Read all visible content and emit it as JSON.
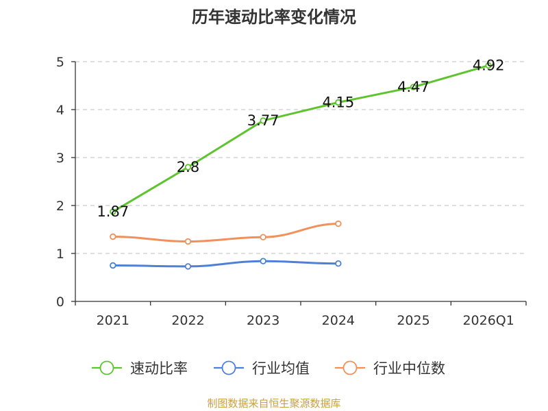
{
  "chart_data": {
    "type": "line",
    "title": "历年速动比率变化情况",
    "categories": [
      "2021",
      "2022",
      "2023",
      "2024",
      "2025",
      "2026Q1"
    ],
    "ylim": [
      0,
      5
    ],
    "yticks": [
      0,
      1,
      2,
      3,
      4,
      5
    ],
    "grid": true,
    "legend_position": "bottom",
    "series": [
      {
        "name": "速动比率",
        "color": "#5ec42e",
        "values": [
          1.87,
          2.8,
          3.77,
          4.15,
          4.47,
          4.92
        ],
        "labels": [
          "1.87",
          "2.8",
          "3.77",
          "4.15",
          "4.47",
          "4.92"
        ]
      },
      {
        "name": "行业均值",
        "color": "#4f7fd6",
        "values": [
          0.75,
          0.73,
          0.84,
          0.79,
          null,
          null
        ]
      },
      {
        "name": "行业中位数",
        "color": "#f0905a",
        "values": [
          1.35,
          1.25,
          1.34,
          1.62,
          null,
          null
        ]
      }
    ]
  },
  "source_text": "制图数据来自恒生聚源数据库",
  "colors": {
    "source": "#c8a040",
    "axis": "#333333",
    "grid": "#cccccc"
  }
}
